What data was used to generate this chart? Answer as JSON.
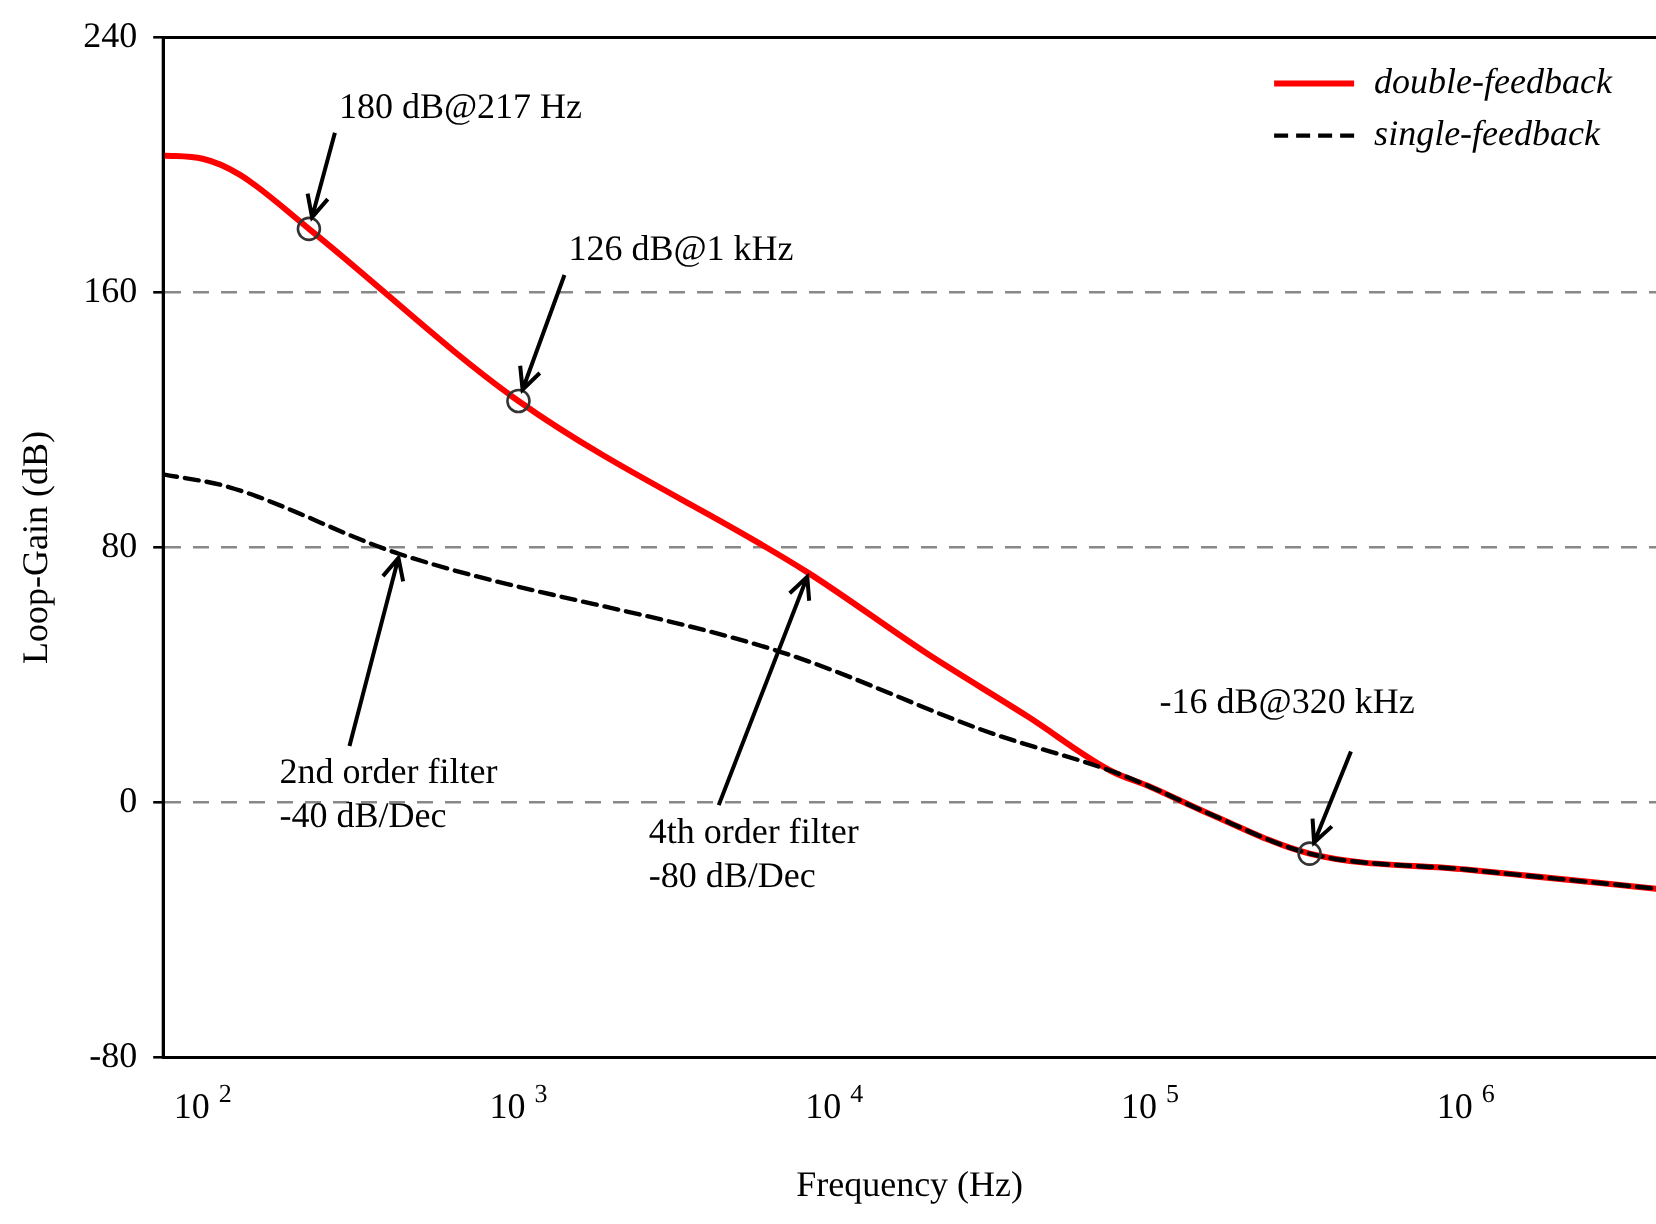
{
  "chart_data": {
    "type": "line",
    "xlabel": "Frequency (Hz)",
    "ylabel": "Loop-Gain (dB)",
    "series": [
      {
        "name": "double-feedback",
        "color": "#ff0000",
        "line_style": "solid",
        "x": [
          75,
          100,
          131,
          217,
          1000,
          8300,
          19500,
          41000,
          75000,
          100000,
          150000,
          320000,
          1000000,
          4000000
        ],
        "values": [
          203,
          202,
          197,
          180,
          126,
          72,
          47,
          27,
          10,
          5,
          -3,
          -16,
          -21,
          -27
        ]
      },
      {
        "name": "single-feedback",
        "color": "#000000",
        "line_style": "dashed",
        "x": [
          75,
          121,
          420,
          6900,
          31000,
          75000,
          100000,
          150000,
          320000,
          1000000,
          4000000
        ],
        "values": [
          103,
          99,
          78,
          47,
          22,
          10,
          5,
          -3,
          -16,
          -21,
          -27
        ]
      }
    ],
    "xlim": [
      75,
      4000000
    ],
    "xticks": [
      {
        "value": 100,
        "label": "10$^{2}$"
      },
      {
        "value": 1000,
        "label": "10$^{3}$"
      },
      {
        "value": 10000,
        "label": "10$^{4}$"
      },
      {
        "value": 100000,
        "label": "10$^{5}$"
      },
      {
        "value": 1000000,
        "label": "10$^{6}$"
      }
    ],
    "ylim": [
      -80,
      240
    ],
    "yticks": [
      -80,
      0,
      80,
      160,
      240
    ],
    "log": "x",
    "grid": "y",
    "legend": "top right",
    "marker": "none",
    "annotations": [
      {
        "text": "180 dB@217 Hz",
        "x": 217,
        "y": 180
      },
      {
        "text": "126 dB@1 kHz",
        "x": 1000,
        "y": 126
      },
      {
        "text": "-16 dB@320 kHz",
        "x": 320000,
        "y": -16
      },
      {
        "text": "2nd order filter\n-40 dB/Dec",
        "x": 420,
        "y": 78
      },
      {
        "text": "4th order filter\n-80 dB/Dec",
        "x": 8300,
        "y": 72
      }
    ]
  }
}
